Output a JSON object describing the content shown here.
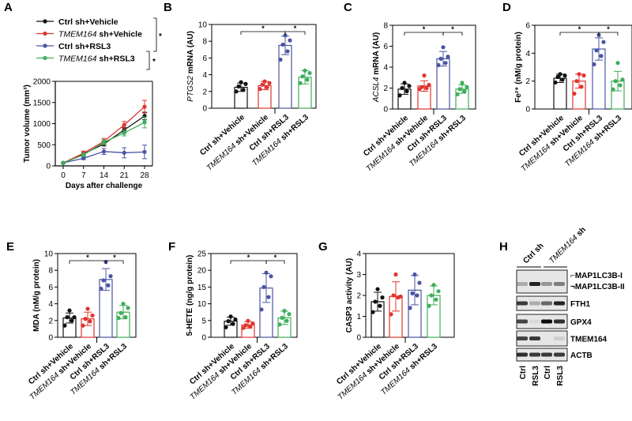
{
  "colors": {
    "ctrl_vehicle": "#111111",
    "tmem_vehicle": "#e0352f",
    "ctrl_rsl3": "#4a55a2",
    "tmem_rsl3": "#3fae5c"
  },
  "panel_letters": [
    "A",
    "B",
    "C",
    "D",
    "E",
    "F",
    "G",
    "H"
  ],
  "significance_mark": "*",
  "chart_data": [
    {
      "id": "A",
      "type": "line",
      "xlabel": "Days after challenge",
      "ylabel": "Tumor volume (mm³)",
      "ylim": [
        0,
        2000
      ],
      "yticks": [
        0,
        500,
        1000,
        1500,
        2000
      ],
      "x": [
        0,
        7,
        14,
        21,
        28
      ],
      "legend": {
        "placement": "top"
      },
      "series": [
        {
          "name_italic": "",
          "name": "Ctrl sh+Vehicle",
          "color_key": "ctrl_vehicle",
          "values": [
            70,
            280,
            520,
            850,
            1180
          ],
          "err": [
            10,
            40,
            50,
            60,
            90
          ]
        },
        {
          "name_italic": "TMEM164",
          "name": " sh+Vehicle",
          "color_key": "tmem_vehicle",
          "values": [
            70,
            300,
            580,
            970,
            1400
          ],
          "err": [
            10,
            50,
            70,
            80,
            150
          ]
        },
        {
          "name_italic": "",
          "name": "Ctrl sh+RSL3",
          "color_key": "ctrl_rsl3",
          "values": [
            70,
            180,
            340,
            310,
            330
          ],
          "err": [
            10,
            30,
            70,
            120,
            160
          ]
        },
        {
          "name_italic": "TMEM164",
          "name": " sh+RSL3",
          "color_key": "tmem_rsl3",
          "values": [
            70,
            260,
            560,
            780,
            1030
          ],
          "err": [
            10,
            40,
            60,
            70,
            130
          ]
        }
      ],
      "significance": [
        {
          "groups": [
            0,
            1
          ],
          "label": "*"
        },
        {
          "groups": [
            2,
            3
          ],
          "label": "*"
        }
      ]
    },
    {
      "id": "B",
      "type": "bar",
      "ylabel_italic": "PTGS2",
      "ylabel": " mRNA (AU)",
      "ylim": [
        0,
        10
      ],
      "yticks": [
        0,
        2,
        4,
        6,
        8,
        10
      ],
      "categories": [
        "Ctrl sh+Vehicle",
        "TMEM164 sh+Vehicle",
        "Ctrl sh+RSL3",
        "TMEM164 sh+RSL3"
      ],
      "values": [
        2.5,
        2.7,
        7.5,
        3.7
      ],
      "sd": [
        0.5,
        0.5,
        1.1,
        0.8
      ],
      "points": [
        [
          2.0,
          2.2,
          2.6,
          2.9,
          3.1
        ],
        [
          2.3,
          2.5,
          2.8,
          3.0,
          3.2
        ],
        [
          5.8,
          6.8,
          7.6,
          8.1,
          8.7
        ],
        [
          3.0,
          3.4,
          3.8,
          4.2,
          4.5
        ]
      ],
      "significance": [
        {
          "groups": [
            0,
            2
          ],
          "label": "*"
        },
        {
          "groups": [
            2,
            3
          ],
          "label": "*"
        }
      ]
    },
    {
      "id": "C",
      "type": "bar",
      "ylabel_italic": "ACSL4",
      "ylabel": " mRNA (AU)",
      "ylim": [
        0,
        8
      ],
      "yticks": [
        0,
        2,
        4,
        6,
        8
      ],
      "categories": [
        "Ctrl sh+Vehicle",
        "TMEM164 sh+Vehicle",
        "Ctrl sh+RSL3",
        "TMEM164 sh+RSL3"
      ],
      "values": [
        1.9,
        2.2,
        4.8,
        1.9
      ],
      "sd": [
        0.5,
        0.5,
        0.7,
        0.4
      ],
      "points": [
        [
          1.3,
          1.7,
          2.0,
          2.2,
          2.5
        ],
        [
          1.9,
          2.0,
          2.1,
          2.3,
          3.2
        ],
        [
          4.2,
          4.4,
          4.8,
          5.0,
          5.9
        ],
        [
          1.4,
          1.7,
          1.9,
          2.1,
          2.5
        ]
      ],
      "significance": [
        {
          "groups": [
            0,
            2
          ],
          "label": "*"
        },
        {
          "groups": [
            2,
            3
          ],
          "label": "*"
        }
      ]
    },
    {
      "id": "D",
      "type": "bar",
      "ylabel": "Fe²⁺ (nM/g protein)",
      "ylim": [
        0,
        6
      ],
      "yticks": [
        0,
        2,
        4,
        6
      ],
      "categories": [
        "Ctrl sh+Vehicle",
        "TMEM164 sh+Vehicle",
        "Ctrl sh+RSL3",
        "TMEM164 sh+RSL3"
      ],
      "values": [
        2.2,
        2.0,
        4.3,
        2.0
      ],
      "sd": [
        0.3,
        0.5,
        0.8,
        0.7
      ],
      "points": [
        [
          1.9,
          2.1,
          2.3,
          2.4,
          2.5
        ],
        [
          1.1,
          1.6,
          2.0,
          2.4,
          2.5
        ],
        [
          3.2,
          3.8,
          4.2,
          4.8,
          5.3
        ],
        [
          1.4,
          1.7,
          2.0,
          2.1,
          3.3
        ]
      ],
      "significance": [
        {
          "groups": [
            0,
            2
          ],
          "label": "*"
        },
        {
          "groups": [
            2,
            3
          ],
          "label": "*"
        }
      ]
    },
    {
      "id": "E",
      "type": "bar",
      "ylabel": "MDA (nM/g protein)",
      "ylim": [
        0,
        10
      ],
      "yticks": [
        0,
        2,
        4,
        6,
        8,
        10
      ],
      "categories": [
        "Ctrl sh+Vehicle",
        "TMEM164 sh+Vehicle",
        "Ctrl sh+RSL3",
        "TMEM164 sh+RSL3"
      ],
      "values": [
        2.3,
        2.2,
        6.9,
        3.0
      ],
      "sd": [
        0.6,
        0.8,
        1.3,
        0.8
      ],
      "points": [
        [
          1.4,
          2.0,
          2.4,
          2.4,
          3.2
        ],
        [
          1.4,
          1.9,
          2.2,
          2.6,
          3.4
        ],
        [
          5.8,
          6.2,
          6.8,
          7.3,
          9.0
        ],
        [
          2.3,
          2.4,
          2.9,
          3.5,
          4.0
        ]
      ],
      "significance": [
        {
          "groups": [
            0,
            2
          ],
          "label": "*"
        },
        {
          "groups": [
            2,
            3
          ],
          "label": "*"
        }
      ]
    },
    {
      "id": "F",
      "type": "bar",
      "ylabel": "5-HETE (ng/g protein)",
      "ylim": [
        0,
        25
      ],
      "yticks": [
        0,
        5,
        10,
        15,
        20,
        25
      ],
      "categories": [
        "Ctrl sh+Vehicle",
        "TMEM164 sh+Vehicle",
        "Ctrl sh+RSL3",
        "TMEM164 sh+RSL3"
      ],
      "values": [
        4.8,
        3.7,
        14.7,
        5.8
      ],
      "sd": [
        1.2,
        1.0,
        4.3,
        2.0
      ],
      "points": [
        [
          3.0,
          4.0,
          4.8,
          5.3,
          6.2
        ],
        [
          2.8,
          3.2,
          3.6,
          4.1,
          4.9
        ],
        [
          8.3,
          12.0,
          15.0,
          18.2,
          19.3
        ],
        [
          3.8,
          4.9,
          5.8,
          6.9,
          7.9
        ]
      ],
      "significance": [
        {
          "groups": [
            0,
            2
          ],
          "label": "*"
        },
        {
          "groups": [
            2,
            3
          ],
          "label": "*"
        }
      ]
    },
    {
      "id": "G",
      "type": "bar",
      "ylabel": "CASP3  activity (AU)",
      "ylim": [
        0,
        4
      ],
      "yticks": [
        0,
        1,
        2,
        3,
        4
      ],
      "categories": [
        "Ctrl sh+Vehicle",
        "TMEM164 sh+Vehicle",
        "Ctrl sh+RSL3",
        "TMEM164 sh+RSL3"
      ],
      "values": [
        1.7,
        1.95,
        2.25,
        2.0
      ],
      "sd": [
        0.45,
        0.7,
        0.7,
        0.45
      ],
      "points": [
        [
          1.2,
          1.5,
          1.7,
          1.9,
          2.3
        ],
        [
          1.1,
          1.9,
          2.0,
          1.95,
          3.0
        ],
        [
          1.4,
          2.0,
          2.1,
          2.6,
          3.0
        ],
        [
          1.5,
          1.8,
          2.0,
          2.2,
          2.5
        ]
      ],
      "significance": []
    }
  ],
  "blot": {
    "group_labels": [
      {
        "italic": "",
        "text": "Ctrl sh"
      },
      {
        "italic": "TMEM164",
        "text": " sh"
      }
    ],
    "lane_labels": [
      "Ctrl",
      "RSL3",
      "Ctrl",
      "RSL3"
    ],
    "rows": [
      {
        "labels": [
          "MAP1LC3B-I",
          "MAP1LC3B-II"
        ],
        "band_intensity": [
          0.25,
          0.85,
          0.35,
          0.45
        ]
      },
      {
        "labels": [
          "FTH1"
        ],
        "band_intensity": [
          0.75,
          0.25,
          0.55,
          0.85
        ]
      },
      {
        "labels": [
          "GPX4"
        ],
        "band_intensity": [
          0.7,
          0.05,
          0.95,
          0.8
        ]
      },
      {
        "labels": [
          "TMEM164"
        ],
        "band_intensity": [
          0.7,
          0.75,
          0.0,
          0.1
        ]
      },
      {
        "labels": [
          "ACTB"
        ],
        "band_intensity": [
          0.8,
          0.75,
          0.75,
          0.75
        ]
      }
    ]
  }
}
